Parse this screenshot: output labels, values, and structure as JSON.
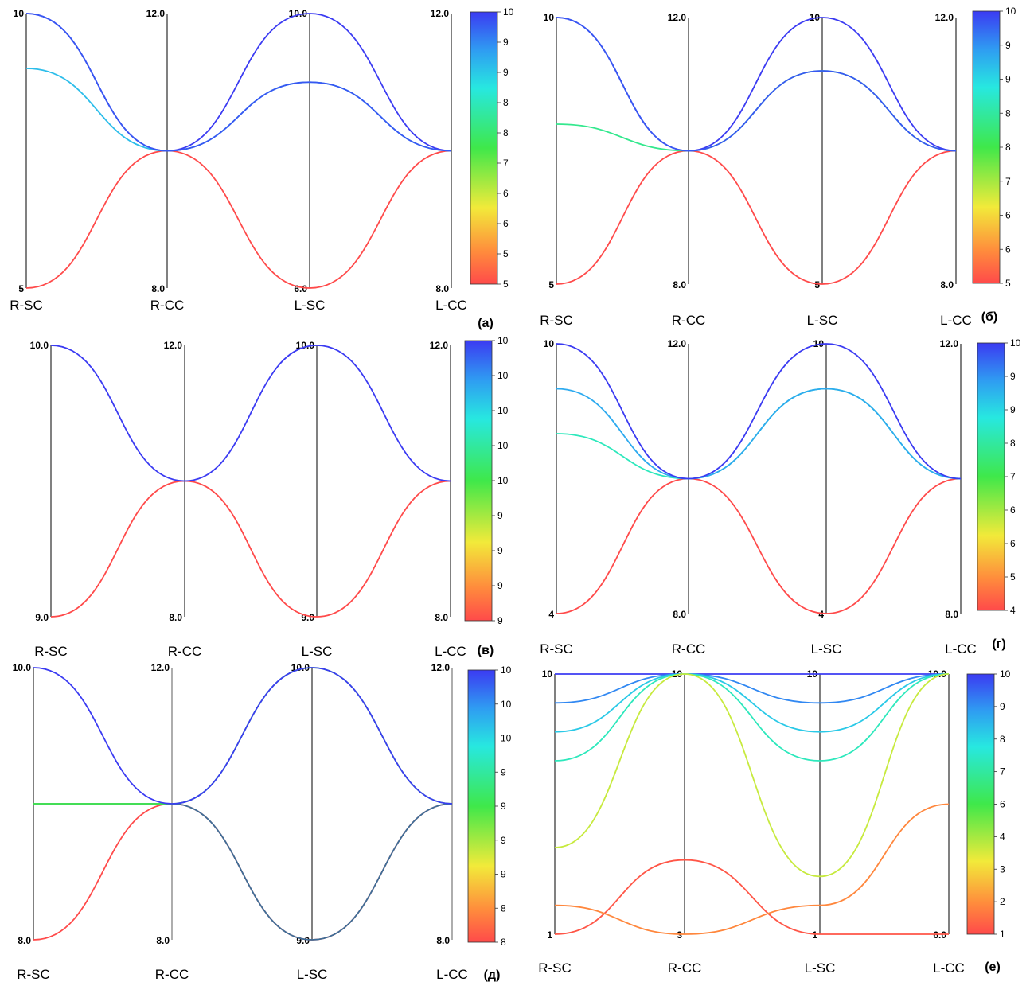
{
  "chart_data": [
    {
      "panel": "(а)",
      "type": "parallel-coordinates",
      "axes": [
        {
          "name": "R-SC",
          "top": "10",
          "bottom": "5",
          "max": 10,
          "min": 5
        },
        {
          "name": "R-CC",
          "top": "12.0",
          "bottom": "8.0",
          "max": 12,
          "min": 8
        },
        {
          "name": "L-SC",
          "top": "10.0",
          "bottom": "6.0",
          "max": 10,
          "min": 6
        },
        {
          "name": "L-CC",
          "top": "12.0",
          "bottom": "8.0",
          "max": 12,
          "min": 8
        }
      ],
      "colorbar": {
        "min": 5,
        "max": 10,
        "ticks": [
          "10",
          "9",
          "9",
          "8",
          "8",
          "7",
          "6",
          "6",
          "5",
          "5"
        ]
      },
      "lines": [
        {
          "values": [
            5,
            10,
            6,
            10
          ],
          "color_value": 5
        },
        {
          "values": [
            9,
            10,
            9,
            10
          ],
          "color_value": 9
        },
        {
          "values": [
            10,
            10,
            10,
            10
          ],
          "color_value": 10
        },
        {
          "values": [
            10,
            10,
            9,
            10
          ],
          "color_value": 9.8
        }
      ]
    },
    {
      "panel": "(б)",
      "type": "parallel-coordinates",
      "axes": [
        {
          "name": "R-SC",
          "top": "10",
          "bottom": "5",
          "max": 10,
          "min": 5
        },
        {
          "name": "R-CC",
          "top": "12.0",
          "bottom": "8.0",
          "max": 12,
          "min": 8
        },
        {
          "name": "L-SC",
          "top": "10",
          "bottom": "5",
          "max": 10,
          "min": 5
        },
        {
          "name": "L-CC",
          "top": "12.0",
          "bottom": "8.0",
          "max": 12,
          "min": 8
        }
      ],
      "colorbar": {
        "min": 5,
        "max": 10,
        "ticks": [
          "10",
          "9",
          "9",
          "8",
          "8",
          "7",
          "6",
          "6",
          "5"
        ]
      },
      "lines": [
        {
          "values": [
            5,
            10,
            5,
            10
          ],
          "color_value": 5
        },
        {
          "values": [
            8,
            10,
            9,
            10
          ],
          "color_value": 8
        },
        {
          "values": [
            10,
            10,
            10,
            10
          ],
          "color_value": 10
        },
        {
          "values": [
            10,
            10,
            9,
            10
          ],
          "color_value": 9.8
        }
      ]
    },
    {
      "panel": "(в)",
      "type": "parallel-coordinates",
      "axes": [
        {
          "name": "R-SC",
          "top": "10.0",
          "bottom": "9.0",
          "max": 10,
          "min": 9
        },
        {
          "name": "R-CC",
          "top": "12.0",
          "bottom": "8.0",
          "max": 12,
          "min": 8
        },
        {
          "name": "L-SC",
          "top": "10.0",
          "bottom": "9.0",
          "max": 10,
          "min": 9
        },
        {
          "name": "L-CC",
          "top": "12.0",
          "bottom": "8.0",
          "max": 12,
          "min": 8
        }
      ],
      "colorbar": {
        "min": 9,
        "max": 10,
        "ticks": [
          "10",
          "10",
          "10",
          "10",
          "10",
          "9",
          "9",
          "9",
          "9"
        ]
      },
      "lines": [
        {
          "values": [
            9,
            10,
            9,
            10
          ],
          "color_value": 9
        },
        {
          "values": [
            10,
            10,
            10,
            10
          ],
          "color_value": 10
        }
      ]
    },
    {
      "panel": "(г)",
      "type": "parallel-coordinates",
      "axes": [
        {
          "name": "R-SC",
          "top": "10",
          "bottom": "4",
          "max": 10,
          "min": 4
        },
        {
          "name": "R-CC",
          "top": "12.0",
          "bottom": "8.0",
          "max": 12,
          "min": 8
        },
        {
          "name": "L-SC",
          "top": "10",
          "bottom": "4",
          "max": 10,
          "min": 4
        },
        {
          "name": "L-CC",
          "top": "12.0",
          "bottom": "8.0",
          "max": 12,
          "min": 8
        }
      ],
      "colorbar": {
        "min": 4,
        "max": 10,
        "ticks": [
          "10",
          "9",
          "9",
          "8",
          "7",
          "6",
          "6",
          "5",
          "4"
        ]
      },
      "lines": [
        {
          "values": [
            4,
            10,
            4,
            10
          ],
          "color_value": 4
        },
        {
          "values": [
            8,
            10,
            9,
            10
          ],
          "color_value": 8
        },
        {
          "values": [
            9,
            10,
            9,
            10
          ],
          "color_value": 9
        },
        {
          "values": [
            10,
            10,
            10,
            10
          ],
          "color_value": 10
        }
      ]
    },
    {
      "panel": "(д)",
      "type": "parallel-coordinates",
      "axes": [
        {
          "name": "R-SC",
          "top": "10.0",
          "bottom": "8.0",
          "max": 10,
          "min": 8
        },
        {
          "name": "R-CC",
          "top": "12.0",
          "bottom": "8.0",
          "max": 12,
          "min": 8
        },
        {
          "name": "L-SC",
          "top": "10.0",
          "bottom": "9.0",
          "max": 10,
          "min": 9
        },
        {
          "name": "L-CC",
          "top": "12.0",
          "bottom": "8.0",
          "max": 12,
          "min": 8
        }
      ],
      "colorbar": {
        "min": 8,
        "max": 10,
        "ticks": [
          "10",
          "10",
          "10",
          "9",
          "9",
          "9",
          "9",
          "8",
          "8"
        ]
      },
      "lines": [
        {
          "values": [
            8,
            10,
            9,
            10
          ],
          "color_value": 8
        },
        {
          "values": [
            9,
            10,
            9,
            10
          ],
          "color_value": 9,
          "color": "#3c6e98"
        },
        {
          "values": [
            9,
            10,
            10,
            10
          ],
          "color_value": 9
        },
        {
          "values": [
            10,
            10,
            10,
            10
          ],
          "color_value": 10
        }
      ]
    },
    {
      "panel": "(е)",
      "type": "parallel-coordinates",
      "axes": [
        {
          "name": "R-SC",
          "top": "10",
          "bottom": "1",
          "max": 10,
          "min": 1
        },
        {
          "name": "R-CC",
          "top": "10",
          "bottom": "3",
          "max": 10,
          "min": 3
        },
        {
          "name": "L-SC",
          "top": "10",
          "bottom": "1",
          "max": 10,
          "min": 1
        },
        {
          "name": "L-CC",
          "top": "10.0",
          "bottom": "6.0",
          "max": 10,
          "min": 6
        }
      ],
      "colorbar": {
        "min": 1,
        "max": 10,
        "ticks": [
          "10",
          "9",
          "8",
          "7",
          "6",
          "4",
          "3",
          "2",
          "1"
        ]
      },
      "lines": [
        {
          "values": [
            10,
            10,
            10,
            10
          ],
          "color_value": 10
        },
        {
          "values": [
            9,
            10,
            9,
            10
          ],
          "color_value": 9
        },
        {
          "values": [
            8,
            10,
            8,
            10
          ],
          "color_value": 8
        },
        {
          "values": [
            7,
            10,
            7,
            10
          ],
          "color_value": 7
        },
        {
          "values": [
            4,
            10,
            3,
            10
          ],
          "color_value": 4
        },
        {
          "values": [
            1,
            5,
            1,
            6
          ],
          "color_value": 1.2
        },
        {
          "values": [
            2,
            3,
            2,
            8
          ],
          "color_value": 2
        }
      ]
    }
  ]
}
